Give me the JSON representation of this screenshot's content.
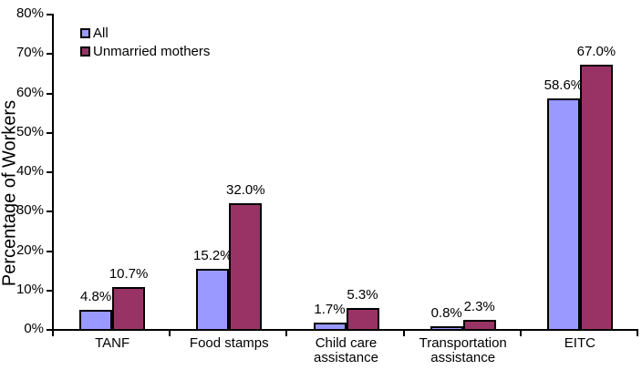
{
  "chart_data": {
    "type": "bar",
    "title": "",
    "ylabel": "Percentage of Workers",
    "xlabel": "",
    "categories": [
      [
        "TANF"
      ],
      [
        "Food stamps"
      ],
      [
        "Child care",
        "assistance"
      ],
      [
        "Transportation",
        "assistance"
      ],
      [
        "EITC"
      ]
    ],
    "series": [
      {
        "name": "All",
        "color": "#9999FF",
        "values": [
          4.8,
          15.2,
          1.7,
          0.8,
          58.6
        ],
        "labels": [
          "4.8%",
          "15.2%",
          "1.7%",
          "0.8%",
          "58.6%"
        ]
      },
      {
        "name": "Unmarried mothers",
        "color": "#993366",
        "values": [
          10.7,
          32.0,
          5.3,
          2.3,
          67.0
        ],
        "labels": [
          "10.7%",
          "32.0%",
          "5.3%",
          "2.3%",
          "67.0%"
        ]
      }
    ],
    "y_axis": {
      "min": 0,
      "max": 80,
      "step": 10,
      "tick_labels": [
        "0%",
        "10%",
        "20%",
        "30%",
        "40%",
        "50%",
        "60%",
        "70%",
        "80%"
      ]
    },
    "legend_position": "top-left",
    "gridlines": false,
    "bar_border_color": "#000000",
    "axis_color": "#000000",
    "background": "#FFFFFF"
  }
}
